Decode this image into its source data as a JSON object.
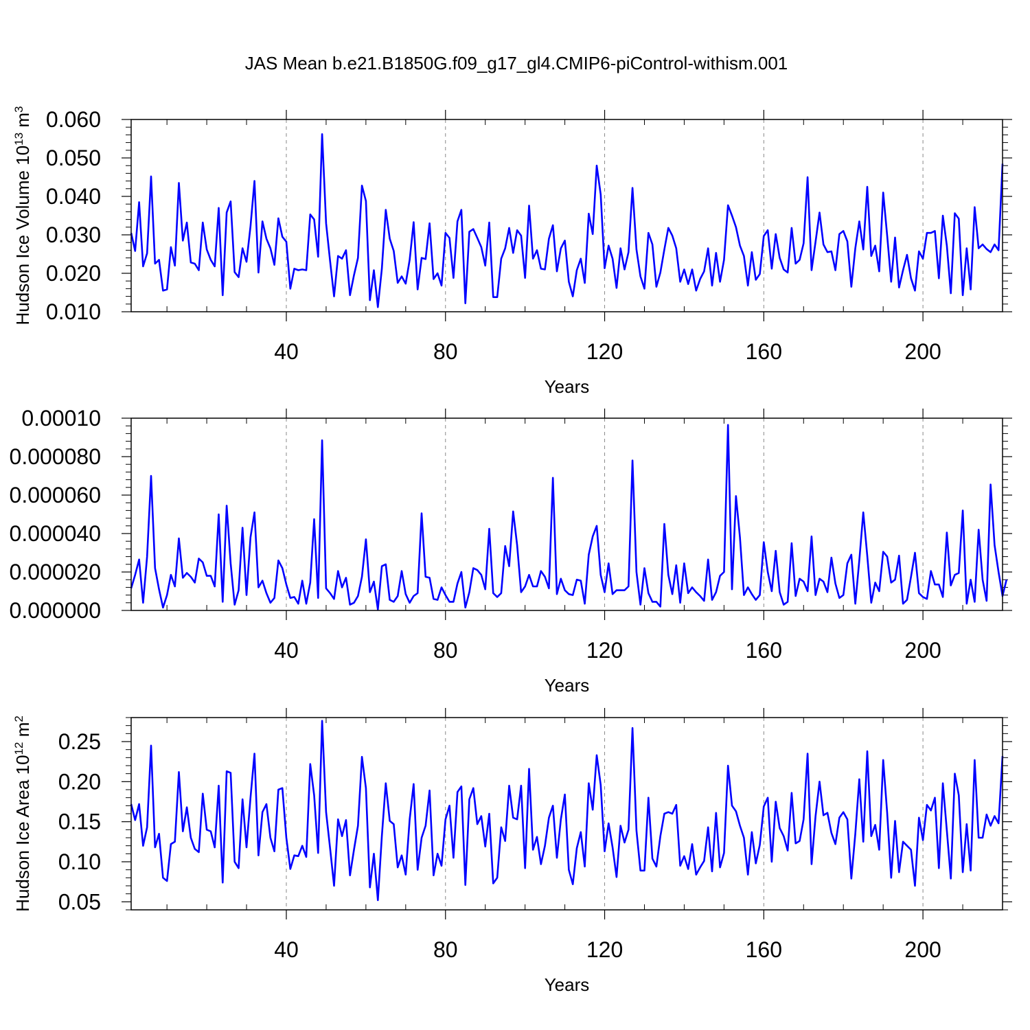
{
  "figure": {
    "title": "JAS Mean b.e21.B1850G.f09_g17_gl4.CMIP6-piControl-withism.001",
    "line_color": "#0000ff",
    "grid_color": "#888888"
  },
  "chart_data": [
    {
      "type": "line",
      "ylabel": "Hudson Ice Volume 10",
      "ylabel_sup1": "13",
      "ylabel_unit": " m",
      "ylabel_sup2": "3",
      "xlabel": "Years",
      "xlim": [
        1,
        220
      ],
      "ylim": [
        0.01,
        0.06
      ],
      "x_ticks": [
        40,
        80,
        120,
        160,
        200
      ],
      "y_ticks": [
        0.01,
        0.02,
        0.03,
        0.04,
        0.05,
        0.06
      ],
      "y_tick_labels": [
        "0.010",
        "0.020",
        "0.030",
        "0.040",
        "0.050",
        "0.060"
      ],
      "grid": "vertical-dashed",
      "values": [
        0.0305,
        0.0258,
        0.0385,
        0.0218,
        0.0252,
        0.0452,
        0.0225,
        0.0235,
        0.0155,
        0.0158,
        0.0268,
        0.022,
        0.0435,
        0.0285,
        0.0332,
        0.0228,
        0.0225,
        0.0208,
        0.0332,
        0.0262,
        0.0235,
        0.0218,
        0.037,
        0.0143,
        0.0358,
        0.0387,
        0.0203,
        0.019,
        0.0265,
        0.023,
        0.0322,
        0.044,
        0.0202,
        0.0335,
        0.029,
        0.0265,
        0.0222,
        0.0343,
        0.0295,
        0.0282,
        0.016,
        0.0212,
        0.0208,
        0.021,
        0.0208,
        0.0353,
        0.034,
        0.0243,
        0.0562,
        0.033,
        0.0232,
        0.014,
        0.0245,
        0.0238,
        0.026,
        0.0143,
        0.0195,
        0.024,
        0.0428,
        0.0388,
        0.013,
        0.0208,
        0.0112,
        0.0212,
        0.0365,
        0.029,
        0.0258,
        0.0175,
        0.0192,
        0.0173,
        0.0235,
        0.0333,
        0.0158,
        0.024,
        0.0237,
        0.033,
        0.0185,
        0.02,
        0.0168,
        0.0305,
        0.0292,
        0.0188,
        0.0335,
        0.0365,
        0.0122,
        0.0308,
        0.0315,
        0.0292,
        0.0268,
        0.022,
        0.0332,
        0.0138,
        0.0138,
        0.0238,
        0.0265,
        0.0318,
        0.0253,
        0.0312,
        0.0298,
        0.0188,
        0.0376,
        0.0238,
        0.026,
        0.0212,
        0.021,
        0.029,
        0.0325,
        0.0205,
        0.0265,
        0.0285,
        0.0178,
        0.014,
        0.0208,
        0.0238,
        0.0175,
        0.0355,
        0.0302,
        0.048,
        0.0405,
        0.0213,
        0.0272,
        0.0238,
        0.0162,
        0.0265,
        0.021,
        0.0255,
        0.0422,
        0.0262,
        0.0192,
        0.016,
        0.0305,
        0.0275,
        0.0165,
        0.0202,
        0.0262,
        0.0318,
        0.0298,
        0.0265,
        0.0178,
        0.021,
        0.0172,
        0.021,
        0.0155,
        0.0185,
        0.0205,
        0.0265,
        0.0168,
        0.0253,
        0.0178,
        0.0235,
        0.0377,
        0.035,
        0.032,
        0.0272,
        0.0245,
        0.0168,
        0.0255,
        0.0183,
        0.0198,
        0.0297,
        0.0312,
        0.0212,
        0.0302,
        0.024,
        0.021,
        0.0202,
        0.0318,
        0.0225,
        0.0235,
        0.0278,
        0.045,
        0.0208,
        0.0282,
        0.0358,
        0.0275,
        0.0255,
        0.0257,
        0.0208,
        0.0302,
        0.031,
        0.0283,
        0.0165,
        0.0265,
        0.0335,
        0.0262,
        0.0425,
        0.0245,
        0.0272,
        0.0205,
        0.041,
        0.0298,
        0.0178,
        0.0293,
        0.0163,
        0.0208,
        0.0248,
        0.0187,
        0.0155,
        0.0257,
        0.0238,
        0.0305,
        0.0305,
        0.031,
        0.0187,
        0.035,
        0.0272,
        0.0148,
        0.0356,
        0.0342,
        0.0143,
        0.0265,
        0.0158,
        0.0372,
        0.0265,
        0.0275,
        0.0263,
        0.0255,
        0.0275,
        0.026,
        0.0485
      ]
    },
    {
      "type": "line",
      "ylabel": "",
      "xlabel": "Years",
      "xlim": [
        1,
        220
      ],
      "ylim": [
        0.0,
        0.0001
      ],
      "x_ticks": [
        40,
        80,
        120,
        160,
        200
      ],
      "y_ticks": [
        0.0,
        2e-05,
        4e-05,
        6e-05,
        8e-05,
        0.0001
      ],
      "y_tick_labels": [
        "0.000000",
        "0.000020",
        "0.000040",
        "0.000060",
        "0.000080",
        "0.00010"
      ],
      "grid": "vertical-dashed",
      "values": [
        1.15e-05,
        1.85e-05,
        2.65e-05,
        4e-06,
        2.8e-05,
        7e-05,
        2.2e-05,
        1.1e-05,
        1.5e-06,
        8e-06,
        1.85e-05,
        1.25e-05,
        3.75e-05,
        1.7e-05,
        1.95e-05,
        1.75e-05,
        1.45e-05,
        2.7e-05,
        2.5e-05,
        1.8e-05,
        1.8e-05,
        1.25e-05,
        5e-05,
        4.5e-06,
        5.45e-05,
        2.45e-05,
        3e-06,
        1.05e-05,
        4.3e-05,
        8e-06,
        3.8e-05,
        5.1e-05,
        1.2e-05,
        1.55e-05,
        9e-06,
        4e-06,
        6.5e-06,
        2.6e-05,
        2.2e-05,
        1.35e-05,
        6.5e-06,
        7e-06,
        3.5e-06,
        1.55e-05,
        3.5e-06,
        1.45e-05,
        4.75e-05,
        6.5e-06,
        8.85e-05,
        1.15e-05,
        9e-06,
        6e-06,
        2.05e-05,
        1.2e-05,
        1.7e-05,
        3e-06,
        4e-06,
        7.5e-06,
        1.75e-05,
        3.7e-05,
        9.5e-06,
        1.5e-05,
        5e-07,
        2.3e-05,
        2.4e-05,
        5.5e-06,
        4.5e-06,
        7.5e-06,
        2.05e-05,
        8.5e-06,
        4e-06,
        7.5e-06,
        9e-06,
        5.05e-05,
        1.75e-05,
        1.7e-05,
        6e-06,
        5.5e-06,
        1.2e-05,
        8e-06,
        4.5e-06,
        4.5e-06,
        1.4e-05,
        2e-05,
        1.5e-06,
        9.5e-06,
        2.2e-05,
        2.1e-05,
        1.85e-05,
        1.1e-05,
        4.25e-05,
        9e-06,
        7e-06,
        9e-06,
        3.35e-05,
        2.3e-05,
        5.15e-05,
        3.4e-05,
        9.5e-06,
        1.25e-05,
        1.85e-05,
        1.25e-05,
        1.25e-05,
        2.05e-05,
        1.75e-05,
        1.15e-05,
        6.9e-05,
        8.5e-06,
        1.65e-05,
        1.05e-05,
        8.5e-06,
        8e-06,
        1.6e-05,
        1.55e-05,
        3.5e-06,
        2.9e-05,
        3.85e-05,
        4.4e-05,
        1.85e-05,
        9.5e-06,
        2.45e-05,
        8.5e-06,
        1.05e-05,
        1.05e-05,
        1.05e-05,
        1.25e-05,
        7.8e-05,
        2e-05,
        3e-06,
        2.2e-05,
        9e-06,
        4.5e-06,
        4.5e-06,
        2e-06,
        4.5e-05,
        1.85e-05,
        8.5e-06,
        2.35e-05,
        4e-06,
        2.45e-05,
        9e-06,
        1.2e-05,
        9.5e-06,
        7.5e-06,
        5e-06,
        2.65e-05,
        5.5e-06,
        9.5e-06,
        1.8e-05,
        2e-05,
        9.65e-05,
        1.1e-05,
        5.95e-05,
        3.8e-05,
        8e-06,
        1.2e-05,
        8.5e-06,
        5.5e-06,
        8e-06,
        3.55e-05,
        2e-05,
        1e-05,
        3.1e-05,
        9.5e-06,
        3e-06,
        4.5e-06,
        3.5e-05,
        7.5e-06,
        1.65e-05,
        1.5e-05,
        1e-05,
        3.85e-05,
        8e-06,
        1.65e-05,
        1.5e-05,
        9.5e-06,
        2.75e-05,
        1.4e-05,
        6.5e-06,
        8e-06,
        2.45e-05,
        2.9e-05,
        3.5e-06,
        2.6e-05,
        5.1e-05,
        2.85e-05,
        4e-06,
        1.45e-05,
        1e-05,
        3.05e-05,
        2.8e-05,
        1.45e-05,
        1.6e-05,
        2.85e-05,
        3.5e-06,
        5.5e-06,
        1.75e-05,
        3e-05,
        9e-06,
        7e-06,
        6e-06,
        2.05e-05,
        1.35e-05,
        1.35e-05,
        7e-06,
        4.05e-05,
        1.3e-05,
        1.85e-05,
        1.95e-05,
        5.2e-05,
        3.5e-06,
        1.6e-05,
        4.5e-06,
        4.2e-05,
        1.6e-05,
        5e-06,
        6.55e-05,
        3.4e-05,
        2e-05,
        7.5e-06,
        1.6e-05
      ]
    },
    {
      "type": "line",
      "ylabel": "Hudson Ice Area 10",
      "ylabel_sup1": "12",
      "ylabel_unit": " m",
      "ylabel_sup2": "2",
      "xlabel": "Years",
      "xlim": [
        1,
        220
      ],
      "ylim": [
        0.04,
        0.28
      ],
      "x_ticks": [
        40,
        80,
        120,
        160,
        200
      ],
      "y_ticks": [
        0.05,
        0.1,
        0.15,
        0.2,
        0.25
      ],
      "y_tick_labels": [
        "0.05",
        "0.10",
        "0.15",
        "0.20",
        "0.25"
      ],
      "grid": "vertical-dashed",
      "values": [
        0.172,
        0.152,
        0.172,
        0.12,
        0.143,
        0.245,
        0.118,
        0.135,
        0.08,
        0.076,
        0.122,
        0.125,
        0.212,
        0.138,
        0.168,
        0.13,
        0.116,
        0.112,
        0.185,
        0.14,
        0.138,
        0.118,
        0.195,
        0.074,
        0.213,
        0.211,
        0.1,
        0.092,
        0.178,
        0.118,
        0.18,
        0.235,
        0.108,
        0.162,
        0.172,
        0.13,
        0.113,
        0.19,
        0.192,
        0.13,
        0.091,
        0.108,
        0.107,
        0.12,
        0.106,
        0.222,
        0.183,
        0.111,
        0.276,
        0.162,
        0.117,
        0.07,
        0.153,
        0.132,
        0.152,
        0.083,
        0.115,
        0.145,
        0.231,
        0.192,
        0.068,
        0.11,
        0.052,
        0.132,
        0.198,
        0.151,
        0.147,
        0.093,
        0.108,
        0.084,
        0.153,
        0.197,
        0.09,
        0.13,
        0.145,
        0.189,
        0.083,
        0.11,
        0.095,
        0.153,
        0.17,
        0.105,
        0.187,
        0.194,
        0.071,
        0.178,
        0.192,
        0.147,
        0.157,
        0.119,
        0.16,
        0.073,
        0.08,
        0.143,
        0.126,
        0.195,
        0.155,
        0.153,
        0.195,
        0.092,
        0.216,
        0.115,
        0.131,
        0.097,
        0.12,
        0.155,
        0.17,
        0.105,
        0.153,
        0.184,
        0.09,
        0.072,
        0.117,
        0.137,
        0.094,
        0.198,
        0.165,
        0.233,
        0.196,
        0.113,
        0.148,
        0.118,
        0.081,
        0.145,
        0.124,
        0.14,
        0.267,
        0.139,
        0.089,
        0.089,
        0.18,
        0.104,
        0.094,
        0.132,
        0.16,
        0.162,
        0.16,
        0.171,
        0.095,
        0.107,
        0.091,
        0.122,
        0.084,
        0.093,
        0.101,
        0.143,
        0.088,
        0.161,
        0.093,
        0.111,
        0.22,
        0.17,
        0.163,
        0.145,
        0.13,
        0.084,
        0.137,
        0.098,
        0.121,
        0.169,
        0.18,
        0.1,
        0.175,
        0.142,
        0.132,
        0.114,
        0.186,
        0.123,
        0.126,
        0.153,
        0.235,
        0.097,
        0.157,
        0.2,
        0.158,
        0.161,
        0.136,
        0.122,
        0.155,
        0.162,
        0.153,
        0.079,
        0.135,
        0.203,
        0.125,
        0.238,
        0.132,
        0.146,
        0.115,
        0.227,
        0.161,
        0.08,
        0.151,
        0.087,
        0.125,
        0.12,
        0.115,
        0.07,
        0.155,
        0.127,
        0.171,
        0.164,
        0.18,
        0.092,
        0.198,
        0.139,
        0.079,
        0.21,
        0.183,
        0.087,
        0.147,
        0.089,
        0.227,
        0.13,
        0.13,
        0.159,
        0.145,
        0.157,
        0.148,
        0.232
      ]
    }
  ]
}
